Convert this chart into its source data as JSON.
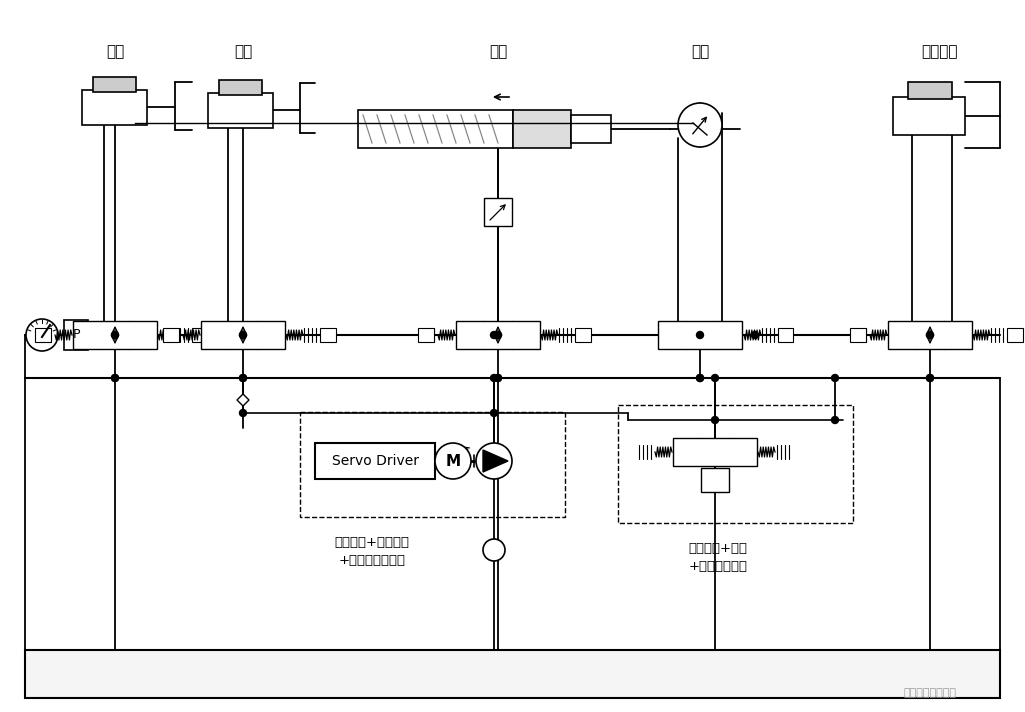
{
  "bg_color": "#ffffff",
  "labels": {
    "suomo": "锁模",
    "sheyi": "射移",
    "shejiao": "射胶",
    "rongjiao": "熔胶",
    "dingzhen": "顶针油缸",
    "servo_text1": "伺服驱动+伺服电机",
    "servo_text2": "+变速驱动叶片泵",
    "system_text1": "系统卸荷+加载",
    "system_text2": "+保压特殊回路",
    "servo_driver": "Servo Driver",
    "motor_label": "M",
    "watermark": "万易号十佰业机电"
  }
}
